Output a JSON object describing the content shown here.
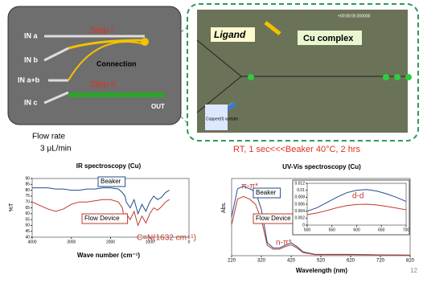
{
  "diagram": {
    "inputs": [
      "IN a",
      "IN b",
      "IN a+b",
      "IN c"
    ],
    "step1": "Step I",
    "step2": "Step II",
    "connection": "Connection",
    "out": "OUT",
    "flow_rate_label": "Flow rate",
    "flow_rate_value": "3 μL/min"
  },
  "micrograph": {
    "timestamp": "+00:00:00.000000",
    "ligand": "Ligand",
    "copper": "Copper(II) acetate",
    "complex": "Cu complex"
  },
  "note": "RT, 1 sec<<<Beaker 40°C, 2 hrs",
  "page_number": "12",
  "chart_data": [
    {
      "type": "line",
      "title": "IR spectroscopy (Cu)",
      "x_label": "Wave number (cm⁻¹)",
      "y_label": "%T",
      "x": [
        4000,
        3600,
        3400,
        3200,
        3000,
        2800,
        2600,
        2400,
        2200,
        2000,
        1800,
        1700,
        1632,
        1600,
        1500,
        1400,
        1300,
        1200,
        1100,
        1000,
        900,
        800,
        700,
        600,
        500
      ],
      "series": [
        {
          "name": "Beaker",
          "color": "#1f4e8c",
          "values": [
            82,
            82,
            81,
            81,
            80,
            80,
            81,
            81,
            82,
            82,
            81,
            78,
            75,
            70,
            65,
            72,
            60,
            68,
            62,
            70,
            75,
            72,
            74,
            78,
            80
          ]
        },
        {
          "name": "Flow Device",
          "color": "#c0392b",
          "values": [
            70,
            64,
            62,
            64,
            68,
            70,
            70,
            71,
            72,
            72,
            70,
            65,
            52,
            60,
            55,
            62,
            50,
            58,
            52,
            60,
            65,
            63,
            66,
            70,
            72
          ]
        }
      ],
      "xlim": [
        4000,
        0
      ],
      "xticks": [
        4000,
        3000,
        2000,
        1000,
        0
      ],
      "ylim": [
        40,
        90
      ],
      "yticks": [
        40,
        45,
        50,
        55,
        60,
        65,
        70,
        75,
        80,
        85,
        90
      ],
      "annotations": [
        "C=N(1632 cm⁻¹)"
      ]
    },
    {
      "type": "line",
      "title": "UV-Vis spectroscopy (Cu)",
      "x_label": "Wavelength (nm)",
      "y_label": "Abs.",
      "x": [
        220,
        240,
        260,
        280,
        300,
        320,
        340,
        360,
        380,
        400,
        420,
        440,
        460,
        500,
        560,
        620,
        720,
        820
      ],
      "series": [
        {
          "name": "Beaker",
          "color": "#1f4e8c",
          "values": [
            1.5,
            2.6,
            2.7,
            2.6,
            2.5,
            1.8,
            0.5,
            0.3,
            0.3,
            0.4,
            0.5,
            0.35,
            0.15,
            0.05,
            0.05,
            0.05,
            0.03,
            0.02
          ]
        },
        {
          "name": "Flow Device",
          "color": "#c0392b",
          "values": [
            1.2,
            2.2,
            2.3,
            2.2,
            2.0,
            1.4,
            0.4,
            0.25,
            0.25,
            0.35,
            0.42,
            0.3,
            0.12,
            0.04,
            0.04,
            0.04,
            0.03,
            0.02
          ]
        }
      ],
      "xlim": [
        220,
        820
      ],
      "xticks": [
        220,
        320,
        420,
        520,
        620,
        720,
        820
      ],
      "ylim": [
        0,
        3
      ],
      "annotations": [
        "π-π*",
        "n-π*"
      ]
    },
    {
      "type": "line",
      "x": [
        500,
        520,
        540,
        560,
        580,
        600,
        620,
        640,
        660,
        680,
        700
      ],
      "series": [
        {
          "color": "#1f4e8c",
          "values": [
            0.004,
            0.005,
            0.0065,
            0.008,
            0.0093,
            0.01,
            0.0102,
            0.0098,
            0.009,
            0.008,
            0.0068
          ]
        },
        {
          "color": "#c0392b",
          "values": [
            0.003,
            0.0035,
            0.0042,
            0.005,
            0.0056,
            0.0059,
            0.006,
            0.0058,
            0.0054,
            0.0049,
            0.0044
          ]
        }
      ],
      "xlim": [
        500,
        700
      ],
      "xticks": [
        500,
        550,
        600,
        650,
        700
      ],
      "ylim": [
        0,
        0.012
      ],
      "yticks": [
        0,
        0.002,
        0.004,
        0.006,
        0.008,
        0.01,
        0.012
      ],
      "annotations": [
        "d-d"
      ]
    }
  ]
}
